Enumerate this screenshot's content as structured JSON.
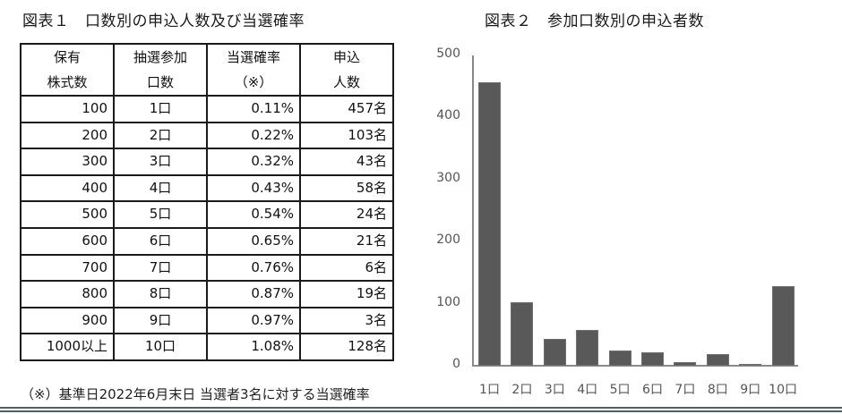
{
  "table_section": {
    "title": "図表１　口数別の申込人数及び当選確率",
    "headers": [
      [
        "保有",
        "株式数"
      ],
      [
        "抽選参加",
        "口数"
      ],
      [
        "当選確率",
        "（※）"
      ],
      [
        "申込",
        "人数"
      ]
    ],
    "rows": [
      {
        "shares": "100",
        "units": "1口",
        "probability": "0.11%",
        "applicants": "457名"
      },
      {
        "shares": "200",
        "units": "2口",
        "probability": "0.22%",
        "applicants": "103名"
      },
      {
        "shares": "300",
        "units": "3口",
        "probability": "0.32%",
        "applicants": "43名"
      },
      {
        "shares": "400",
        "units": "4口",
        "probability": "0.43%",
        "applicants": "58名"
      },
      {
        "shares": "500",
        "units": "5口",
        "probability": "0.54%",
        "applicants": "24名"
      },
      {
        "shares": "600",
        "units": "6口",
        "probability": "0.65%",
        "applicants": "21名"
      },
      {
        "shares": "700",
        "units": "7口",
        "probability": "0.76%",
        "applicants": "6名"
      },
      {
        "shares": "800",
        "units": "8口",
        "probability": "0.87%",
        "applicants": "19名"
      },
      {
        "shares": "900",
        "units": "9口",
        "probability": "0.97%",
        "applicants": "3名"
      },
      {
        "shares": "1000以上",
        "units": "10口",
        "probability": "1.08%",
        "applicants": "128名"
      }
    ],
    "note": "（※）基準日2022年6月末日 当選者3名に対する当選確率"
  },
  "chart_section": {
    "title": "図表２　参加口数別の申込者数"
  },
  "colors": {
    "bar": "#595959",
    "axis": "#8a8a8a",
    "table_border": "#1a1a1a",
    "bottom_rule": "#4a6469"
  },
  "chart_data": {
    "type": "bar",
    "title": "図表２　参加口数別の申込者数",
    "xlabel": "",
    "ylabel": "",
    "categories": [
      "1口",
      "2口",
      "3口",
      "4口",
      "5口",
      "6口",
      "7口",
      "8口",
      "9口",
      "10口"
    ],
    "values": [
      457,
      103,
      43,
      58,
      24,
      21,
      6,
      19,
      3,
      128
    ],
    "ylim": [
      0,
      500
    ],
    "yticks": [
      "0",
      "100",
      "200",
      "300",
      "400",
      "500"
    ],
    "grid": false,
    "legend": null
  }
}
